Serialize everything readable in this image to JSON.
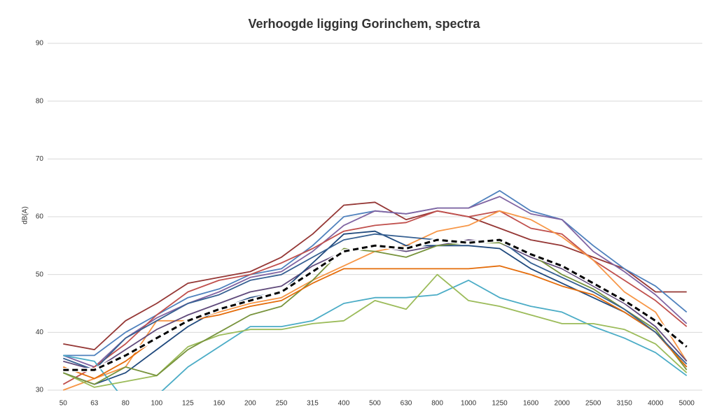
{
  "chart_data": {
    "type": "line",
    "title": "Verhoogde ligging Gorinchem, spectra",
    "y_label": "dB(A)",
    "categories": [
      "50",
      "63",
      "80",
      "100",
      "125",
      "160",
      "200",
      "250",
      "315",
      "400",
      "500",
      "630",
      "800",
      "1000",
      "1250",
      "1600",
      "2000",
      "2500",
      "3150",
      "4000",
      "5000"
    ],
    "ylim": [
      30,
      90
    ],
    "yticks": [
      30,
      40,
      50,
      60,
      70,
      80,
      90
    ],
    "grid": true,
    "series": [
      {
        "color": "#953735",
        "values": [
          38,
          37,
          42,
          45,
          48.5,
          49.5,
          50.5,
          53,
          57,
          62,
          62.5,
          59.5,
          61,
          60,
          58,
          56,
          55,
          53,
          51,
          47,
          47
        ]
      },
      {
        "color": "#4f81bd",
        "values": [
          36,
          36,
          40,
          43,
          46,
          47.5,
          50,
          51,
          55,
          60,
          61,
          60.5,
          61.5,
          61.5,
          64.5,
          61,
          59.5,
          55,
          51,
          48,
          43.5
        ]
      },
      {
        "color": "#8064a2",
        "values": [
          36,
          34,
          39,
          42.5,
          45,
          47,
          49.5,
          50.5,
          54,
          58.5,
          61,
          60.5,
          61.5,
          61.5,
          63.5,
          60.5,
          59.5,
          54,
          50.5,
          46.5,
          41.5
        ]
      },
      {
        "color": "#c0504d",
        "values": [
          31,
          34,
          38,
          43,
          47,
          49,
          50,
          52,
          54.5,
          57.5,
          58.5,
          59,
          61,
          60,
          61,
          58,
          57,
          52.5,
          49,
          45.5,
          41
        ]
      },
      {
        "color": "#f79646",
        "values": [
          30,
          32,
          34,
          42,
          42,
          43.5,
          45,
          46,
          49,
          51.5,
          54,
          55,
          57.5,
          58.5,
          61,
          59.5,
          56.5,
          52.5,
          47,
          43.5,
          35
        ]
      },
      {
        "color": "#604a7b",
        "values": [
          35,
          33.5,
          37,
          40.5,
          43,
          45,
          47,
          48,
          51.5,
          54,
          55,
          54,
          55,
          56,
          55.5,
          53,
          51,
          48,
          45,
          41,
          35
        ]
      },
      {
        "color": "#1f497d",
        "values": [
          33,
          31,
          33,
          37,
          41,
          44,
          46,
          47,
          52,
          57,
          57.5,
          55,
          55,
          55,
          54.5,
          51,
          48.5,
          46,
          43.5,
          40,
          34
        ]
      },
      {
        "color": "#4bacc6",
        "values": [
          36,
          35,
          28,
          29,
          34,
          37.5,
          41,
          41,
          42,
          45,
          46,
          46,
          46.5,
          49,
          46,
          44.5,
          43.5,
          41,
          39,
          36.5,
          32.5
        ]
      },
      {
        "color": "#9bbb59",
        "values": [
          33,
          30.5,
          31.5,
          32.5,
          37.5,
          39.5,
          40.5,
          40.5,
          41.5,
          42,
          45.5,
          44,
          50,
          45.5,
          44.5,
          43,
          41.5,
          41.5,
          40.5,
          38,
          33
        ]
      },
      {
        "color": "#77933c",
        "values": [
          33,
          31,
          34,
          32.5,
          37,
          40,
          43,
          44.5,
          49,
          54.5,
          54,
          53,
          55,
          55.5,
          55.5,
          53.5,
          50,
          47.5,
          44,
          40.5,
          33.5
        ]
      },
      {
        "color": "#e46c0a",
        "values": [
          34,
          32,
          35,
          39,
          42,
          43,
          44.5,
          45.5,
          48.5,
          51,
          51,
          51,
          51,
          51,
          51.5,
          50,
          48,
          46.5,
          43.5,
          40,
          34
        ]
      },
      {
        "color": "#366092",
        "values": [
          35.5,
          33.5,
          39,
          42,
          45,
          46.5,
          49,
          50,
          53,
          56,
          57,
          56.5,
          56,
          55.5,
          56,
          52,
          49.5,
          47,
          44,
          40,
          34.5
        ]
      },
      {
        "color": "#000000",
        "dashed": true,
        "values": [
          33.5,
          33.5,
          36,
          39,
          42,
          44,
          45.5,
          47,
          50.5,
          54,
          55,
          54.5,
          56,
          55.5,
          56,
          53.5,
          51.5,
          48.5,
          45.5,
          42,
          37.5
        ]
      }
    ]
  }
}
